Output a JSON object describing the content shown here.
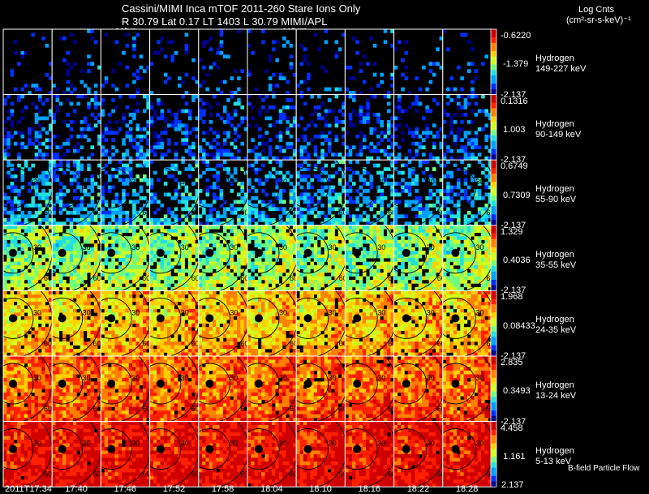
{
  "header": {
    "title": "Cassini/MIMI Inca mTOF  2011-260   Stare   Ions Only",
    "subtitle": "R        30.79 Lat 0.17 LT 1403 L        30.79  MIMI/APL",
    "saturn_label_1": "satur",
    "saturn_label_2": "saturn"
  },
  "legend": {
    "title": "Log Cnts",
    "units": "(cm²-sr-s-keV)⁻¹",
    "footnote": "B-field Particle Flow"
  },
  "colors": {
    "colormap": [
      "#000090",
      "#0030ff",
      "#00a0ff",
      "#20e0e0",
      "#70ff80",
      "#d0ff20",
      "#ffd000",
      "#ff8000",
      "#ff2000",
      "#d00000"
    ]
  },
  "chart_data": {
    "type": "heatmap",
    "description_of_axes": "rows = energy channels, columns = image times",
    "x": [
      "2011T17:34",
      "17:40",
      "17:46",
      "17:52",
      "17:58",
      "18:04",
      "18:10",
      "18:16",
      "18:22",
      "18:28"
    ],
    "rows": [
      {
        "species": "Hydrogen",
        "energy": "149-227 keV",
        "max": "-0.6220",
        "mid": "-1.379",
        "min": "-2.137",
        "fill": 0.15,
        "level": 0.05
      },
      {
        "species": "Hydrogen",
        "energy": "90-149 keV",
        "max": "0.1316",
        "mid": "1.003",
        "min": "-2.137",
        "fill": 0.45,
        "level": 0.08
      },
      {
        "species": "Hydrogen",
        "energy": "55-90 keV",
        "max": "0.6749",
        "mid": "0.7309",
        "min": "-2.137",
        "fill": 0.65,
        "level": 0.18
      },
      {
        "species": "Hydrogen",
        "energy": "35-55 keV",
        "max": "1.329",
        "mid": "0.4036",
        "min": "-2.137",
        "fill": 0.85,
        "level": 0.4
      },
      {
        "species": "Hydrogen",
        "energy": "24-35 keV",
        "max": "1.968",
        "mid": "0.08433",
        "min": "-2.137",
        "fill": 0.92,
        "level": 0.58
      },
      {
        "species": "Hydrogen",
        "energy": "13-24 keV",
        "max": "2.835",
        "mid": "0.3493",
        "min": "-2.137",
        "fill": 0.97,
        "level": 0.7
      },
      {
        "species": "Hydrogen",
        "energy": "5-13 keV",
        "max": "4.458",
        "mid": "1.161",
        "min": "2.137",
        "fill": 0.99,
        "level": 0.82
      }
    ],
    "contour_labels": [
      "30",
      "60",
      "6"
    ]
  }
}
